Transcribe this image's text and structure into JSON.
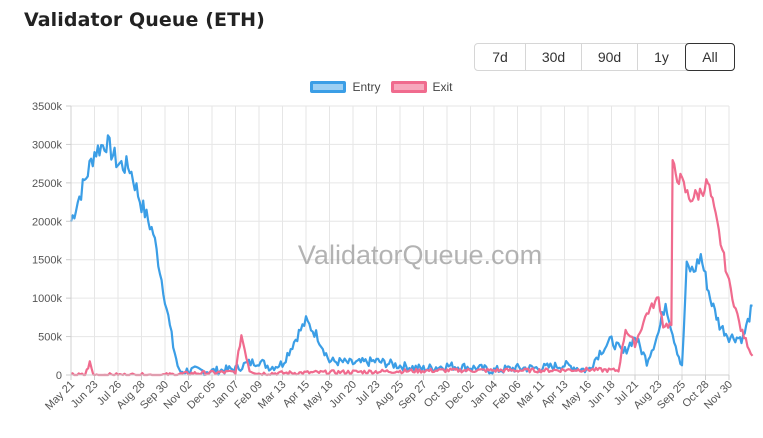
{
  "header": {
    "title": "Validator Queue (ETH)"
  },
  "range_buttons": [
    {
      "label": "7d",
      "active": false
    },
    {
      "label": "30d",
      "active": false
    },
    {
      "label": "90d",
      "active": false
    },
    {
      "label": "1y",
      "active": false
    },
    {
      "label": "All",
      "active": true
    }
  ],
  "watermark": "ValidatorQueue.com",
  "colors": {
    "entry": "#3b9ee6",
    "entry_fill": "#9ccff3",
    "exit": "#f06b8e",
    "exit_fill": "#f7a8bd",
    "grid": "#e6e6e6"
  },
  "chart_data": {
    "type": "line",
    "title": "Validator Queue (ETH)",
    "xlabel": "",
    "ylabel": "",
    "ylim": [
      0,
      3500000
    ],
    "grid": true,
    "legend": "top-center",
    "yticks": [
      "0",
      "500k",
      "1000k",
      "1500k",
      "2000k",
      "2500k",
      "3000k",
      "3500k"
    ],
    "categories": [
      "May 21",
      "Jun 23",
      "Jul 26",
      "Aug 28",
      "Sep 30",
      "Nov 02",
      "Dec 05",
      "Jan 07",
      "Feb 09",
      "Mar 13",
      "Apr 15",
      "May 18",
      "Jun 20",
      "Jul 23",
      "Aug 25",
      "Sep 27",
      "Oct 30",
      "Dec 02",
      "Jan 04",
      "Feb 06",
      "Mar 11",
      "Apr 13",
      "May 16",
      "Jun 18",
      "Jul 21",
      "Aug 23",
      "Sep 25",
      "Oct 28",
      "Nov 30"
    ],
    "series": [
      {
        "name": "Entry",
        "color": "#3b9ee6",
        "values": [
          [
            0,
            2000000
          ],
          [
            0.5,
            2450000
          ],
          [
            1,
            2900000
          ],
          [
            1.5,
            3030000
          ],
          [
            2,
            2750000
          ],
          [
            2.5,
            2700000
          ],
          [
            3,
            2220000
          ],
          [
            3.5,
            1850000
          ],
          [
            4,
            1000000
          ],
          [
            4.35,
            380000
          ],
          [
            4.6,
            40000
          ],
          [
            5,
            60000
          ],
          [
            6,
            50000
          ],
          [
            7,
            80000
          ],
          [
            7.5,
            150000
          ],
          [
            8,
            180000
          ],
          [
            8.5,
            100000
          ],
          [
            9,
            150000
          ],
          [
            9.7,
            550000
          ],
          [
            10,
            700000
          ],
          [
            10.5,
            500000
          ],
          [
            11,
            180000
          ],
          [
            11.5,
            170000
          ],
          [
            12,
            150000
          ],
          [
            13,
            180000
          ],
          [
            14,
            120000
          ],
          [
            15,
            80000
          ],
          [
            16,
            120000
          ],
          [
            17,
            100000
          ],
          [
            18,
            60000
          ],
          [
            19,
            90000
          ],
          [
            20,
            90000
          ],
          [
            21,
            130000
          ],
          [
            22,
            60000
          ],
          [
            22.5,
            300000
          ],
          [
            23,
            450000
          ],
          [
            23.5,
            280000
          ],
          [
            24,
            500000
          ],
          [
            24.5,
            180000
          ],
          [
            25,
            550000
          ],
          [
            25.3,
            950000
          ],
          [
            25.6,
            550000
          ],
          [
            26,
            90000
          ],
          [
            26.2,
            1400000
          ],
          [
            26.5,
            1350000
          ],
          [
            26.8,
            1550000
          ],
          [
            27.2,
            1000000
          ],
          [
            27.6,
            650000
          ],
          [
            28,
            500000
          ],
          [
            28.6,
            480000
          ],
          [
            29,
            900000
          ]
        ]
      },
      {
        "name": "Exit",
        "color": "#f06b8e",
        "values": [
          [
            0,
            0
          ],
          [
            0.6,
            0
          ],
          [
            0.8,
            160000
          ],
          [
            0.95,
            0
          ],
          [
            2,
            0
          ],
          [
            4,
            0
          ],
          [
            5,
            20000
          ],
          [
            6,
            30000
          ],
          [
            7,
            40000
          ],
          [
            7.25,
            520000
          ],
          [
            7.6,
            60000
          ],
          [
            8,
            20000
          ],
          [
            10,
            30000
          ],
          [
            12,
            40000
          ],
          [
            14,
            50000
          ],
          [
            16,
            60000
          ],
          [
            18,
            60000
          ],
          [
            20,
            60000
          ],
          [
            22,
            70000
          ],
          [
            23.3,
            60000
          ],
          [
            23.6,
            600000
          ],
          [
            24,
            400000
          ],
          [
            24.5,
            800000
          ],
          [
            25,
            1000000
          ],
          [
            25.2,
            650000
          ],
          [
            25.55,
            650000
          ],
          [
            25.6,
            2700000
          ],
          [
            26,
            2500000
          ],
          [
            26.3,
            2300000
          ],
          [
            26.7,
            2350000
          ],
          [
            27.1,
            2500000
          ],
          [
            27.5,
            1950000
          ],
          [
            28,
            1200000
          ],
          [
            28.5,
            600000
          ],
          [
            29,
            250000
          ]
        ]
      }
    ]
  }
}
